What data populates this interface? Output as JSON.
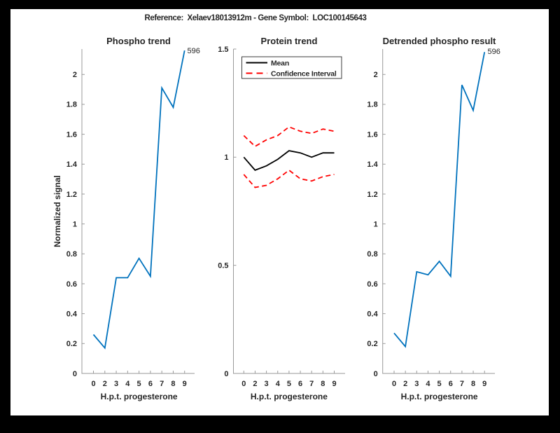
{
  "figure": {
    "title": "Reference:  Xelaev18013912m - Gene Symbol:  LOC100145643",
    "background_color": "#000000",
    "canvas_color": "#ffffff"
  },
  "colors": {
    "signal_blue": "#0072BD",
    "ci_red": "#FF0000",
    "mean_black": "#000000",
    "text": "#262626",
    "axis_gray": "#9a9a9a"
  },
  "chart_data": [
    {
      "type": "line",
      "title": "Phospho trend",
      "xlabel": "H.p.t. progesterone",
      "ylabel": "Normalized signal",
      "categories": [
        "0",
        "2",
        "3",
        "4",
        "5",
        "6",
        "7",
        "8",
        "9"
      ],
      "ylim": [
        0,
        2.17
      ],
      "yticks": [
        0,
        0.2,
        0.4,
        0.6,
        0.8,
        1,
        1.2,
        1.4,
        1.6,
        1.8,
        2
      ],
      "ytick_labels": [
        "0",
        "0.2",
        "0.4",
        "0.6",
        "0.8",
        "1",
        "1.2",
        "1.4",
        "1.6",
        "1.8",
        "2"
      ],
      "grid": false,
      "legend_position": "none",
      "series": [
        {
          "name": "phospho-signal",
          "color": "#0072BD",
          "dashed": false,
          "values": [
            0.26,
            0.17,
            0.64,
            0.64,
            0.77,
            0.65,
            1.91,
            1.78,
            2.16
          ]
        }
      ],
      "end_label": "596"
    },
    {
      "type": "line",
      "title": "Protein trend",
      "xlabel": "H.p.t. progesterone",
      "ylabel": "",
      "categories": [
        "0",
        "2",
        "3",
        "4",
        "5",
        "6",
        "7",
        "8",
        "9"
      ],
      "ylim": [
        0,
        1.5
      ],
      "yticks": [
        0,
        0.5,
        1,
        1.5
      ],
      "ytick_labels": [
        "0",
        "0.5",
        "1",
        "1.5"
      ],
      "grid": false,
      "legend_position": "northwest",
      "series": [
        {
          "name": "mean",
          "color": "#000000",
          "dashed": false,
          "values": [
            1.0,
            0.94,
            0.96,
            0.99,
            1.03,
            1.02,
            1.0,
            1.02,
            1.02
          ]
        },
        {
          "name": "confidence-interval-upper",
          "color": "#FF0000",
          "dashed": true,
          "values": [
            1.1,
            1.05,
            1.08,
            1.1,
            1.14,
            1.12,
            1.11,
            1.13,
            1.12
          ]
        },
        {
          "name": "confidence-interval-lower",
          "color": "#FF0000",
          "dashed": true,
          "values": [
            0.92,
            0.86,
            0.87,
            0.9,
            0.94,
            0.9,
            0.89,
            0.91,
            0.92
          ]
        }
      ],
      "legend": {
        "entries": [
          {
            "label": "Mean",
            "color": "#000000",
            "dashed": false
          },
          {
            "label": "Confidence Interval",
            "color": "#FF0000",
            "dashed": true
          }
        ]
      },
      "end_label": ""
    },
    {
      "type": "line",
      "title": "Detrended phospho result",
      "xlabel": "H.p.t. progesterone",
      "ylabel": "",
      "categories": [
        "0",
        "2",
        "3",
        "4",
        "5",
        "6",
        "7",
        "8",
        "9"
      ],
      "ylim": [
        0,
        2.17
      ],
      "yticks": [
        0,
        0.2,
        0.4,
        0.6,
        0.8,
        1,
        1.2,
        1.4,
        1.6,
        1.8,
        2
      ],
      "ytick_labels": [
        "0",
        "0.2",
        "0.4",
        "0.6",
        "0.8",
        "1",
        "1.2",
        "1.4",
        "1.6",
        "1.8",
        "2"
      ],
      "grid": false,
      "legend_position": "none",
      "series": [
        {
          "name": "detrended-phospho-signal",
          "color": "#0072BD",
          "dashed": false,
          "values": [
            0.27,
            0.18,
            0.68,
            0.66,
            0.75,
            0.65,
            1.93,
            1.76,
            2.15
          ]
        }
      ],
      "end_label": "596"
    }
  ]
}
